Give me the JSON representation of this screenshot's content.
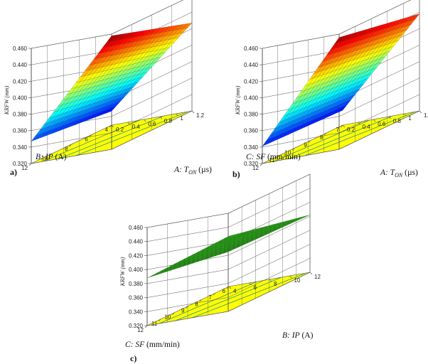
{
  "chart_data": [
    {
      "type": "surface",
      "panel_label": "a)",
      "zlabel": "KRFW (mm)",
      "zticks": [
        "0.320",
        "0.340",
        "0.360",
        "0.380",
        "0.400",
        "0.420",
        "0.440",
        "0.460"
      ],
      "zlim": [
        0.32,
        0.46
      ],
      "x_axis": {
        "label": "A: T",
        "sub": "ON",
        "unit": " (µs)",
        "ticks": [
          "0.2",
          "0.4",
          "0.6",
          "0.8",
          "1",
          "1.2"
        ],
        "range": [
          0.2,
          1.2
        ]
      },
      "y_axis": {
        "label": "B: IP",
        "unit": " (A)",
        "ticks": [
          "4",
          "6",
          "8",
          "10",
          "12"
        ],
        "range": [
          4,
          12
        ]
      },
      "surface": {
        "z_min_corner": 0.337,
        "z_x_max_corner": 0.427,
        "z_y_max_corner": 0.347,
        "z_max_corner": 0.458,
        "colormap": "jet"
      }
    },
    {
      "type": "surface",
      "panel_label": "b)",
      "zlabel": "KRFW (mm)",
      "zticks": [
        "0.320",
        "0.340",
        "0.360",
        "0.380",
        "0.400",
        "0.420",
        "0.440",
        "0.460"
      ],
      "zlim": [
        0.32,
        0.46
      ],
      "x_axis": {
        "label": "A: T",
        "sub": "ON",
        "unit": " (µs)",
        "ticks": [
          "0.2",
          "0.4",
          "0.6",
          "0.8",
          "1",
          "1.2"
        ],
        "range": [
          0.2,
          1.2
        ]
      },
      "y_axis": {
        "label": "C: SF",
        "unit": " (mm/min)",
        "ticks": [
          "7",
          "8",
          "9",
          "10",
          "11",
          "12"
        ],
        "range": [
          6,
          12
        ]
      },
      "surface": {
        "z_min_corner": 0.338,
        "z_x_max_corner": 0.438,
        "z_y_max_corner": 0.341,
        "z_max_corner": 0.456,
        "colormap": "jet"
      }
    },
    {
      "type": "surface",
      "panel_label": "c)",
      "zlabel": "KRFW (mm)",
      "zticks": [
        "0.320",
        "0.340",
        "0.360",
        "0.380",
        "0.400",
        "0.420",
        "0.440",
        "0.460"
      ],
      "zlim": [
        0.32,
        0.46
      ],
      "x_axis": {
        "label": "B: IP",
        "unit": " (A)",
        "ticks": [
          "4",
          "6",
          "8",
          "10",
          "12"
        ],
        "range": [
          4,
          12
        ]
      },
      "y_axis": {
        "label": "C: SF",
        "unit": " (mm/min)",
        "ticks": [
          "6",
          "7",
          "8",
          "9",
          "10",
          "11",
          "12"
        ],
        "range": [
          6,
          12
        ]
      },
      "surface": {
        "z_min_corner": 0.392,
        "z_x_max_corner": 0.402,
        "z_y_max_corner": 0.388,
        "z_max_corner": 0.405,
        "colormap": "green"
      }
    }
  ],
  "colors": {
    "contour_floor": "#ffff00",
    "contour_line": "#2f8f9a",
    "grid": "#555555",
    "mesh": "#000000"
  }
}
